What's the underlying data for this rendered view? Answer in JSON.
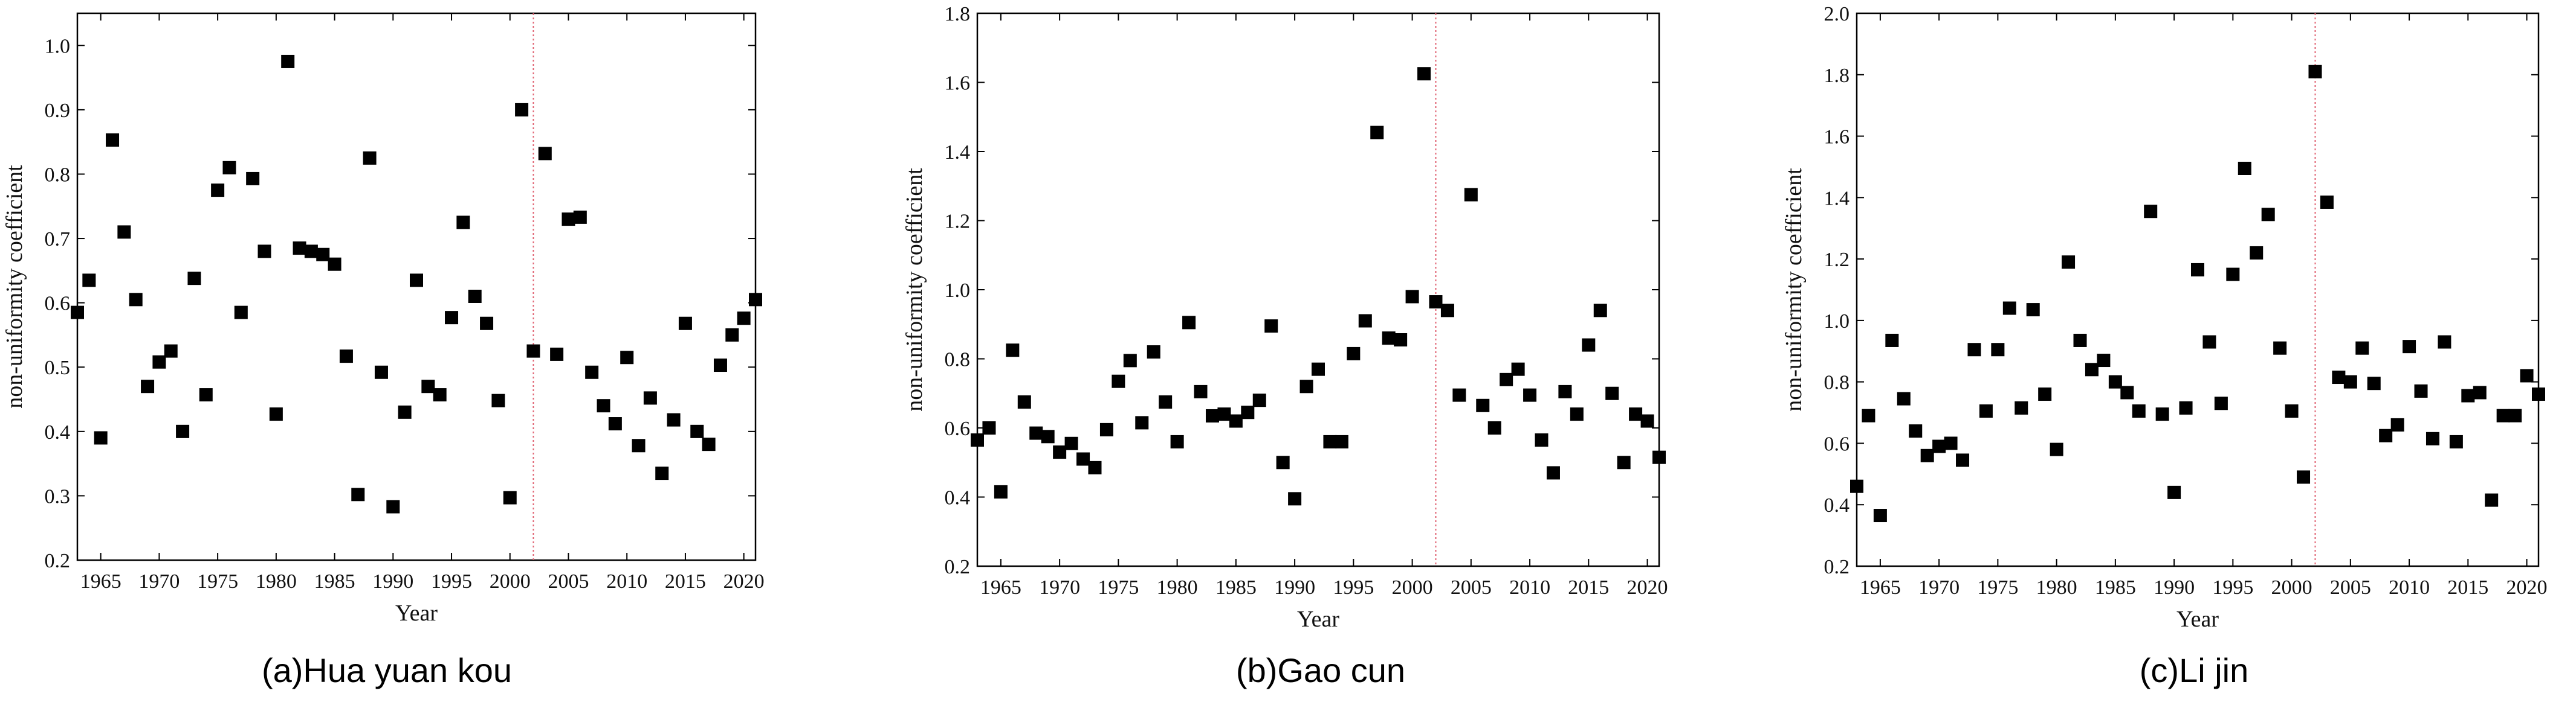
{
  "colors": {
    "marker": "#000000",
    "divider": "#e06070",
    "axis": "#000000"
  },
  "chart_data": [
    {
      "type": "scatter",
      "caption": "(a)Hua yuan kou",
      "xlabel": "Year",
      "ylabel": "non-uniformity coefficient",
      "xlim": [
        1963,
        2021
      ],
      "ylim": [
        0.2,
        1.05
      ],
      "xticks": [
        1965,
        1970,
        1975,
        1980,
        1985,
        1990,
        1995,
        2000,
        2005,
        2010,
        2015,
        2020
      ],
      "yticks": [
        0.2,
        0.3,
        0.4,
        0.5,
        0.6,
        0.7,
        0.8,
        0.9,
        1.0
      ],
      "ytick_labels": [
        "0.2",
        "0.3",
        "0.4",
        "0.5",
        "0.6",
        "0.7",
        "0.8",
        "0.9",
        "1.0"
      ],
      "divider_year": 2002,
      "x": [
        1963,
        1964,
        1965,
        1966,
        1967,
        1968,
        1969,
        1970,
        1971,
        1972,
        1973,
        1974,
        1975,
        1976,
        1977,
        1978,
        1979,
        1980,
        1981,
        1982,
        1983,
        1984,
        1985,
        1986,
        1987,
        1988,
        1989,
        1990,
        1991,
        1992,
        1993,
        1994,
        1995,
        1996,
        1997,
        1998,
        1999,
        2000,
        2001,
        2002,
        2003,
        2004,
        2005,
        2006,
        2007,
        2008,
        2009,
        2010,
        2011,
        2012,
        2013,
        2014,
        2015,
        2016,
        2017,
        2018,
        2019,
        2020,
        2021
      ],
      "y": [
        0.585,
        0.635,
        0.39,
        0.853,
        0.71,
        0.605,
        0.47,
        0.508,
        0.525,
        0.4,
        0.638,
        0.457,
        0.775,
        0.81,
        0.585,
        0.793,
        0.68,
        0.427,
        0.975,
        0.685,
        0.68,
        0.675,
        0.66,
        0.517,
        0.302,
        0.825,
        0.492,
        0.283,
        0.43,
        0.635,
        0.47,
        0.457,
        0.577,
        0.725,
        0.61,
        0.568,
        0.448,
        0.297,
        0.9,
        0.525,
        0.832,
        0.52,
        0.73,
        0.733,
        0.492,
        0.44,
        0.412,
        0.515,
        0.378,
        0.452,
        0.335,
        0.418,
        0.568,
        0.4,
        0.38,
        0.503,
        0.55,
        0.576,
        0.605
      ]
    },
    {
      "type": "scatter",
      "caption": "(b)Gao cun",
      "xlabel": "Year",
      "ylabel": "non-uniformity coefficient",
      "xlim": [
        1963,
        2021
      ],
      "ylim": [
        0.2,
        1.8
      ],
      "xticks": [
        1965,
        1970,
        1975,
        1980,
        1985,
        1990,
        1995,
        2000,
        2005,
        2010,
        2015,
        2020
      ],
      "yticks": [
        0.2,
        0.4,
        0.6,
        0.8,
        1.0,
        1.2,
        1.4,
        1.6,
        1.8
      ],
      "ytick_labels": [
        "0.2",
        "0.4",
        "0.6",
        "0.8",
        "1.0",
        "1.2",
        "1.4",
        "1.6",
        "1.8"
      ],
      "divider_year": 2002,
      "x": [
        1963,
        1964,
        1965,
        1966,
        1967,
        1968,
        1969,
        1970,
        1971,
        1972,
        1973,
        1974,
        1975,
        1976,
        1977,
        1978,
        1979,
        1980,
        1981,
        1982,
        1983,
        1984,
        1985,
        1986,
        1987,
        1988,
        1989,
        1990,
        1991,
        1992,
        1993,
        1994,
        1995,
        1996,
        1997,
        1998,
        1999,
        2000,
        2001,
        2002,
        2003,
        2004,
        2005,
        2006,
        2007,
        2008,
        2009,
        2010,
        2011,
        2012,
        2013,
        2014,
        2015,
        2016,
        2017,
        2018,
        2019,
        2020,
        2021
      ],
      "y": [
        0.565,
        0.6,
        0.415,
        0.825,
        0.675,
        0.585,
        0.575,
        0.53,
        0.555,
        0.51,
        0.485,
        0.595,
        0.735,
        0.795,
        0.615,
        0.82,
        0.675,
        0.56,
        0.905,
        0.705,
        0.635,
        0.64,
        0.62,
        0.645,
        0.68,
        0.895,
        0.5,
        0.395,
        0.72,
        0.77,
        0.56,
        0.56,
        0.815,
        0.91,
        1.455,
        0.86,
        0.855,
        0.98,
        1.625,
        0.965,
        0.94,
        0.695,
        1.275,
        0.665,
        0.6,
        0.74,
        0.77,
        0.695,
        0.565,
        0.47,
        0.705,
        0.64,
        0.84,
        0.94,
        0.7,
        0.5,
        0.64,
        0.62,
        0.515
      ]
    },
    {
      "type": "scatter",
      "caption": "(c)Li jin",
      "xlabel": "Year",
      "ylabel": "non-uniformity coefficient",
      "xlim": [
        1963,
        2021
      ],
      "ylim": [
        0.2,
        2.0
      ],
      "xticks": [
        1965,
        1970,
        1975,
        1980,
        1985,
        1990,
        1995,
        2000,
        2005,
        2010,
        2015,
        2020
      ],
      "yticks": [
        0.2,
        0.4,
        0.6,
        0.8,
        1.0,
        1.2,
        1.4,
        1.6,
        1.8,
        2.0
      ],
      "ytick_labels": [
        "0.2",
        "0.4",
        "0.6",
        "0.8",
        "1.0",
        "1.2",
        "1.4",
        "1.6",
        "1.8",
        "2.0"
      ],
      "divider_year": 2002,
      "x": [
        1963,
        1964,
        1965,
        1966,
        1967,
        1968,
        1969,
        1970,
        1971,
        1972,
        1973,
        1974,
        1975,
        1976,
        1977,
        1978,
        1979,
        1980,
        1981,
        1982,
        1983,
        1984,
        1985,
        1986,
        1987,
        1988,
        1989,
        1990,
        1991,
        1992,
        1993,
        1994,
        1995,
        1996,
        1997,
        1998,
        1999,
        2000,
        2001,
        2002,
        2003,
        2004,
        2005,
        2006,
        2007,
        2008,
        2009,
        2010,
        2011,
        2012,
        2013,
        2014,
        2015,
        2016,
        2017,
        2018,
        2019,
        2020,
        2021
      ],
      "y": [
        0.46,
        0.69,
        0.365,
        0.935,
        0.745,
        0.64,
        0.56,
        0.59,
        0.6,
        0.545,
        0.905,
        0.705,
        0.905,
        1.04,
        0.715,
        1.035,
        0.76,
        0.58,
        1.19,
        0.935,
        0.84,
        0.87,
        0.8,
        0.765,
        0.705,
        1.355,
        0.695,
        0.44,
        0.715,
        1.165,
        0.93,
        0.73,
        1.15,
        1.495,
        1.22,
        1.345,
        0.91,
        0.705,
        0.49,
        1.81,
        1.385,
        0.815,
        0.8,
        0.91,
        0.795,
        0.625,
        0.66,
        0.915,
        0.77,
        0.615,
        0.93,
        0.605,
        0.755,
        0.765,
        0.415,
        0.69,
        0.69,
        0.82,
        0.76
      ]
    }
  ]
}
